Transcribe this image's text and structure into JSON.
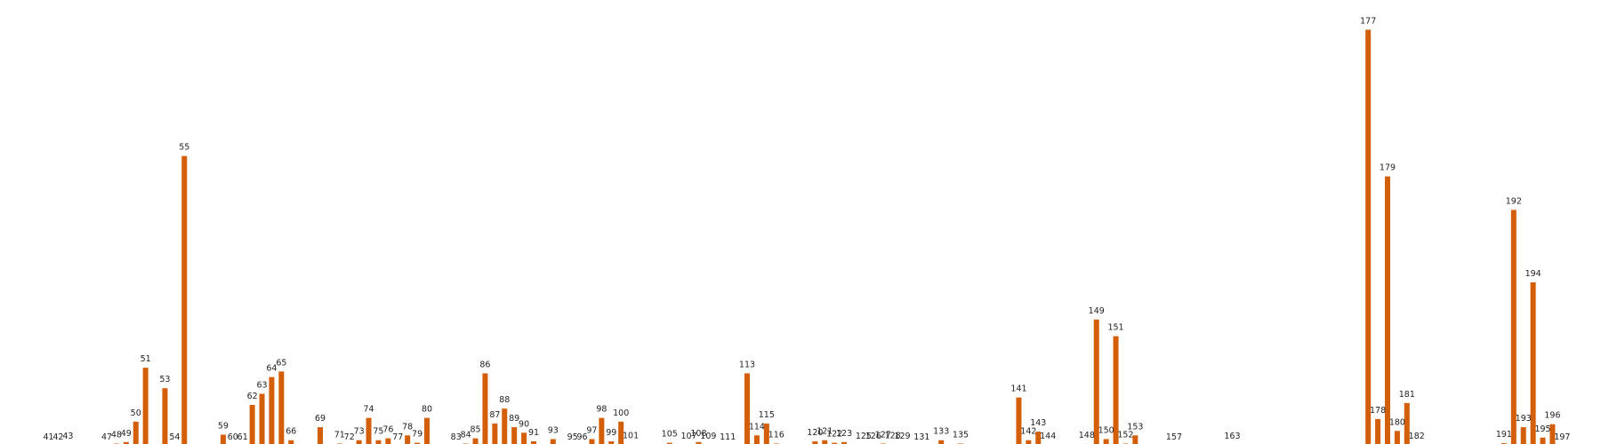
{
  "chart_data": {
    "type": "bar",
    "title": "",
    "xlabel": "",
    "ylabel": "",
    "ylim": [
      0,
      1200
    ],
    "xlim": [
      36,
      201
    ],
    "grid": false,
    "legend": "none",
    "colors": {
      "bar": "#d35f0a",
      "label": "#222222"
    },
    "series": [
      {
        "x": [
          41,
          42,
          43,
          47,
          48,
          49,
          50,
          51,
          53,
          54,
          55,
          59,
          60,
          61,
          62,
          63,
          64,
          65,
          66,
          69,
          71,
          72,
          73,
          74,
          75,
          76,
          77,
          78,
          79,
          80,
          83,
          84,
          85,
          86,
          87,
          88,
          89,
          90,
          91,
          93,
          95,
          96,
          97,
          98,
          99,
          100,
          101,
          105,
          107,
          108,
          109,
          111,
          113,
          114,
          115,
          116,
          120,
          121,
          122,
          123,
          125,
          126,
          127,
          128,
          129,
          131,
          133,
          135,
          141,
          142,
          143,
          144,
          148,
          149,
          150,
          151,
          152,
          153,
          157,
          163,
          177,
          178,
          179,
          180,
          181,
          182,
          191,
          192,
          193,
          194,
          195,
          196,
          197
        ],
        "values": [
          0,
          0,
          2,
          0,
          6,
          10,
          65,
          210,
          155,
          0,
          780,
          30,
          0,
          0,
          110,
          140,
          185,
          200,
          15,
          50,
          6,
          0,
          15,
          75,
          15,
          20,
          0,
          28,
          8,
          75,
          0,
          6,
          20,
          195,
          60,
          100,
          50,
          35,
          12,
          18,
          0,
          0,
          18,
          75,
          12,
          65,
          4,
          8,
          3,
          10,
          2,
          0,
          195,
          28,
          60,
          6,
          12,
          15,
          8,
          10,
          3,
          3,
          6,
          4,
          2,
          0,
          15,
          6,
          130,
          15,
          38,
          2,
          5,
          340,
          18,
          295,
          6,
          28,
          0,
          3,
          1120,
          72,
          725,
          40,
          115,
          2,
          7,
          635,
          50,
          440,
          22,
          58,
          0
        ]
      }
    ]
  }
}
